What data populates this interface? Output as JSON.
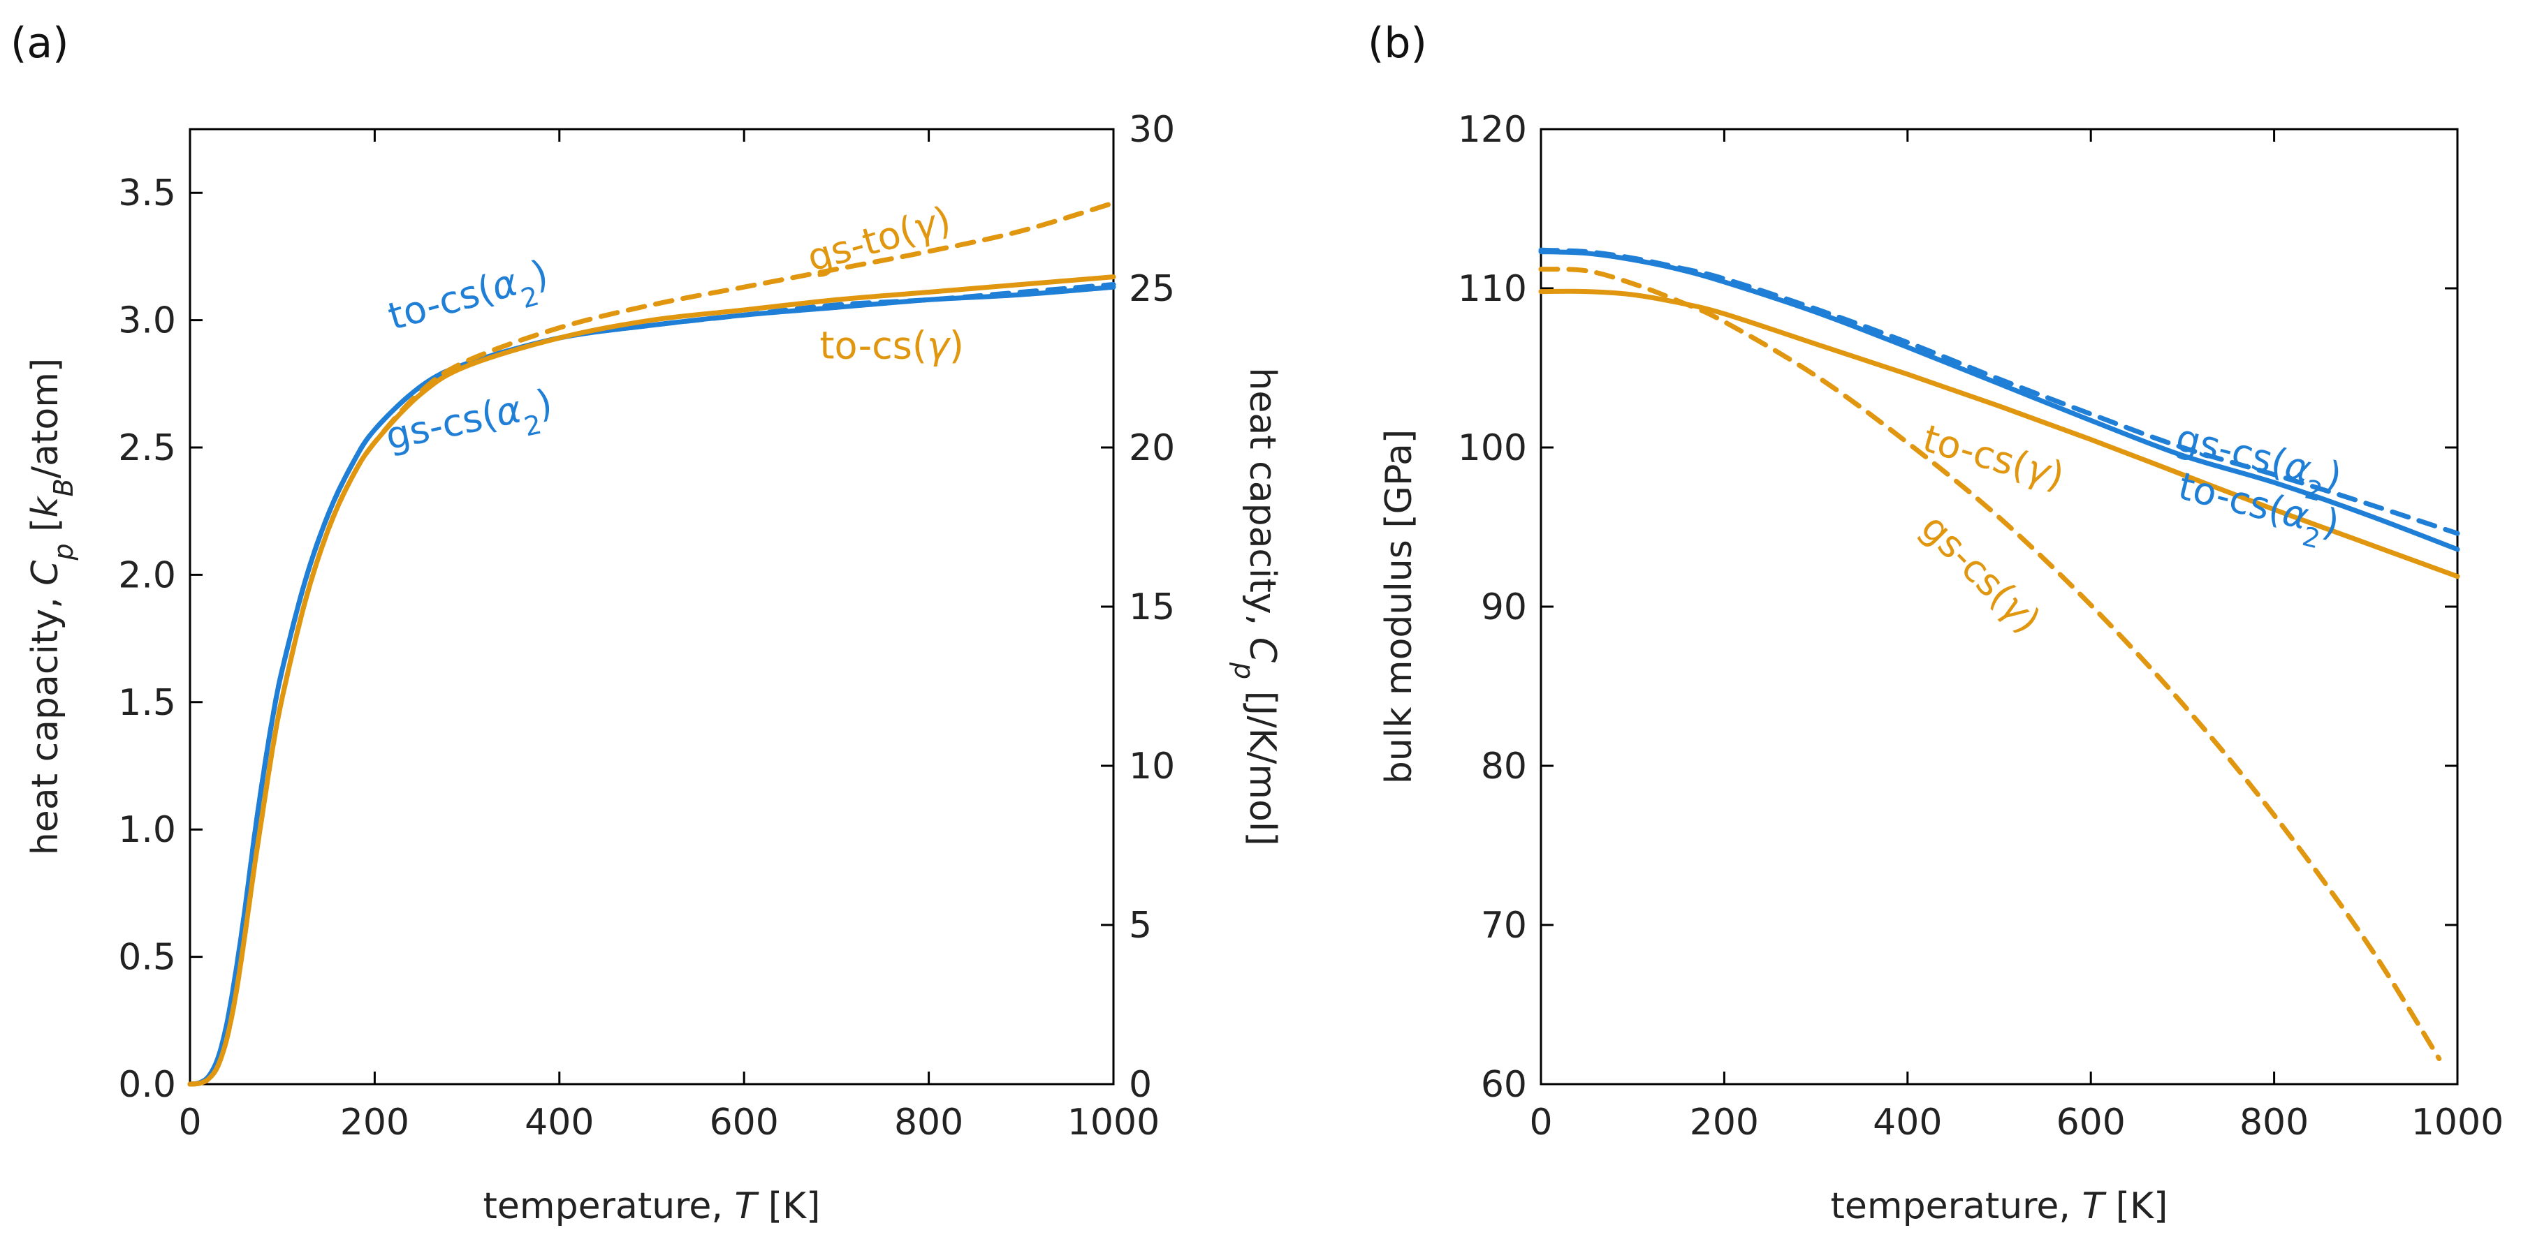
{
  "chart_data": [
    {
      "type": "line",
      "panel": "(a)",
      "xlabel": "temperature, T [K]",
      "ylabel": "heat capacity, C_p [k_B/atom]",
      "ylabel_right": "heat capacity, C_p [J/K/mol]",
      "xlim": [
        0,
        1000
      ],
      "ylim": [
        0,
        3.75
      ],
      "ylim_right": [
        0,
        30
      ],
      "xticks": [
        "0",
        "200",
        "400",
        "600",
        "800",
        "1000"
      ],
      "yticks": [
        "0.0",
        "0.5",
        "1.0",
        "1.5",
        "2.0",
        "2.5",
        "3.0",
        "3.5"
      ],
      "yticks_right": [
        "0",
        "5",
        "10",
        "15",
        "20",
        "25",
        "30"
      ],
      "colors": {
        "alpha2": "#1f7fd6",
        "gamma": "#e0960e"
      },
      "series": [
        {
          "name": "to-cs(α₂)",
          "color": "#1f7fd6",
          "dash": false,
          "x": [
            0,
            10,
            20,
            30,
            40,
            50,
            60,
            70,
            80,
            90,
            100,
            125,
            150,
            175,
            200,
            250,
            300,
            400,
            500,
            600,
            700,
            800,
            900,
            1000
          ],
          "y": [
            0,
            0.005,
            0.03,
            0.1,
            0.24,
            0.45,
            0.7,
            0.98,
            1.23,
            1.45,
            1.63,
            1.98,
            2.24,
            2.43,
            2.57,
            2.74,
            2.83,
            2.93,
            2.98,
            3.02,
            3.05,
            3.08,
            3.1,
            3.13
          ]
        },
        {
          "name": "gs-cs(α₂)",
          "color": "#1f7fd6",
          "dash": true,
          "x": [
            0,
            10,
            20,
            30,
            40,
            50,
            60,
            70,
            80,
            90,
            100,
            125,
            150,
            175,
            200,
            250,
            300,
            400,
            500,
            600,
            700,
            800,
            900,
            1000
          ],
          "y": [
            0,
            0.005,
            0.03,
            0.1,
            0.24,
            0.45,
            0.7,
            0.98,
            1.23,
            1.45,
            1.63,
            1.98,
            2.24,
            2.43,
            2.57,
            2.74,
            2.83,
            2.93,
            2.98,
            3.02,
            3.06,
            3.08,
            3.11,
            3.14
          ]
        },
        {
          "name": "to-cs(γ)",
          "color": "#e0960e",
          "dash": false,
          "x": [
            0,
            10,
            20,
            30,
            40,
            50,
            60,
            70,
            80,
            90,
            100,
            125,
            150,
            175,
            200,
            250,
            300,
            400,
            500,
            600,
            700,
            800,
            900,
            1000
          ],
          "y": [
            0,
            0.003,
            0.02,
            0.07,
            0.18,
            0.36,
            0.6,
            0.86,
            1.1,
            1.33,
            1.52,
            1.9,
            2.18,
            2.38,
            2.52,
            2.71,
            2.82,
            2.93,
            3.0,
            3.04,
            3.08,
            3.11,
            3.14,
            3.17
          ]
        },
        {
          "name": "gs-to(γ)",
          "color": "#e0960e",
          "dash": true,
          "x": [
            0,
            10,
            20,
            30,
            40,
            50,
            60,
            70,
            80,
            90,
            100,
            125,
            150,
            175,
            200,
            250,
            300,
            400,
            500,
            600,
            700,
            800,
            900,
            1000
          ],
          "y": [
            0,
            0.003,
            0.02,
            0.07,
            0.18,
            0.36,
            0.6,
            0.86,
            1.1,
            1.33,
            1.52,
            1.9,
            2.18,
            2.38,
            2.52,
            2.72,
            2.84,
            2.97,
            3.06,
            3.13,
            3.2,
            3.27,
            3.35,
            3.46
          ]
        }
      ],
      "annotations": [
        {
          "text": "to-cs(",
          "greek": "α",
          "sub": "2",
          "close": ")",
          "color": "#1f7fd6",
          "x": 305,
          "y": 3.05,
          "rotate": -16
        },
        {
          "text": "gs-cs(",
          "greek": "α",
          "sub": "2",
          "close": ")",
          "color": "#1f7fd6",
          "x": 305,
          "y": 2.56,
          "rotate": -12
        },
        {
          "text": "gs-to(",
          "greek": "γ",
          "sub": "",
          "close": ")",
          "color": "#e0960e",
          "x": 750,
          "y": 3.27,
          "rotate": -16
        },
        {
          "text": "to-cs(",
          "greek": "γ",
          "sub": "",
          "close": ")",
          "color": "#e0960e",
          "x": 760,
          "y": 2.85,
          "rotate": 0
        }
      ]
    },
    {
      "type": "line",
      "panel": "(b)",
      "xlabel": "temperature, T [K]",
      "ylabel": "bulk modulus [GPa]",
      "xlim": [
        0,
        1000
      ],
      "ylim": [
        60,
        120
      ],
      "xticks": [
        "0",
        "200",
        "400",
        "600",
        "800",
        "1000"
      ],
      "yticks": [
        "60",
        "70",
        "80",
        "90",
        "100",
        "110",
        "120"
      ],
      "series": [
        {
          "name": "to-cs(α₂)",
          "color": "#1f7fd6",
          "dash": false,
          "x": [
            0,
            50,
            100,
            150,
            200,
            300,
            400,
            500,
            600,
            700,
            800,
            900,
            1000
          ],
          "y": [
            112.3,
            112.2,
            111.8,
            111.2,
            110.4,
            108.5,
            106.3,
            104.0,
            101.7,
            99.5,
            97.8,
            95.8,
            93.6
          ]
        },
        {
          "name": "gs-cs(α₂)",
          "color": "#1f7fd6",
          "dash": true,
          "x": [
            0,
            50,
            100,
            150,
            200,
            300,
            400,
            500,
            600,
            700,
            800,
            900,
            1000
          ],
          "y": [
            112.4,
            112.3,
            111.9,
            111.3,
            110.6,
            108.7,
            106.6,
            104.3,
            102.1,
            100.0,
            98.3,
            96.5,
            94.6
          ]
        },
        {
          "name": "to-cs(γ)",
          "color": "#e0960e",
          "dash": false,
          "x": [
            0,
            50,
            100,
            150,
            200,
            300,
            400,
            500,
            600,
            700,
            800,
            900,
            1000
          ],
          "y": [
            109.8,
            109.8,
            109.6,
            109.1,
            108.4,
            106.5,
            104.6,
            102.6,
            100.5,
            98.3,
            96.1,
            94.0,
            91.9
          ]
        },
        {
          "name": "gs-cs(γ)",
          "color": "#e0960e",
          "dash": true,
          "x": [
            0,
            50,
            100,
            150,
            200,
            300,
            400,
            500,
            600,
            700,
            800,
            900,
            980
          ],
          "y": [
            111.2,
            111.1,
            110.3,
            109.2,
            107.9,
            104.5,
            100.3,
            95.6,
            90.1,
            83.9,
            76.9,
            69.0,
            61.6
          ]
        }
      ],
      "annotations": [
        {
          "text": "gs-cs(",
          "greek": "α",
          "sub": "2",
          "close": ")",
          "color": "#1f7fd6",
          "x": 780,
          "y": 98.6,
          "rotate": 14
        },
        {
          "text": "to-cs(",
          "greek": "α",
          "sub": "2",
          "close": ")",
          "color": "#1f7fd6",
          "x": 780,
          "y": 95.6,
          "rotate": 14
        },
        {
          "text": "to-cs(",
          "greek": "γ",
          "sub": "",
          "close": ")",
          "color": "#e0960e",
          "x": 490,
          "y": 98.6,
          "rotate": 16
        },
        {
          "text": "gs-cs(",
          "greek": "γ",
          "sub": "",
          "close": ")",
          "color": "#e0960e",
          "x": 470,
          "y": 91.5,
          "rotate": 45
        }
      ]
    }
  ]
}
